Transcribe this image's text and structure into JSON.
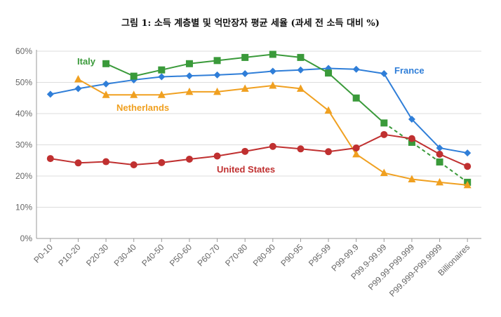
{
  "title": "그림 1: 소득 계층별 및 억만장자 평균 세율 (과세 전 소득 대비 %)",
  "chart_data": {
    "type": "line",
    "title": "그림 1: 소득 계층별 및 억만장자 평균 세율 (과세 전 소득 대비 %)",
    "xlabel": "",
    "ylabel": "",
    "categories": [
      "P0-10",
      "P10-20",
      "P20-30",
      "P30-40",
      "P40-50",
      "P50-60",
      "P60-70",
      "P70-80",
      "P80-90",
      "P90-95",
      "P95-99",
      "P99-99.9",
      "P99.9-99.99",
      "P99.99-P99.999",
      "P99.999-P99.9999",
      "Billionaires"
    ],
    "y_ticks": [
      "0%",
      "10%",
      "20%",
      "30%",
      "40%",
      "50%",
      "60%"
    ],
    "ylim": [
      0,
      60
    ],
    "grid": true,
    "legend": "inline labels",
    "series": [
      {
        "name": "France",
        "color": "#2f7ed8",
        "marker": "diamond",
        "values": [
          46.2,
          48,
          49.5,
          50.8,
          51.8,
          52.1,
          52.4,
          52.8,
          53.6,
          54,
          54.5,
          54.2,
          52.8,
          38.2,
          29,
          27.4
        ]
      },
      {
        "name": "Italy",
        "color": "#3a9a3a",
        "marker": "square",
        "values": [
          null,
          null,
          56,
          52,
          54,
          56,
          57,
          58,
          59,
          58,
          53,
          45,
          37,
          30.8,
          24.5,
          18
        ],
        "dashed_from_index": 12
      },
      {
        "name": "Netherlands",
        "color": "#f0a020",
        "marker": "triangle",
        "values": [
          null,
          51,
          46,
          46,
          46,
          47,
          47,
          48,
          49,
          48,
          41,
          27,
          21,
          19,
          18,
          17.1
        ]
      },
      {
        "name": "United States",
        "color": "#c03030",
        "marker": "circle",
        "values": [
          25.6,
          24.2,
          24.6,
          23.6,
          24.3,
          25.4,
          26.4,
          27.9,
          29.5,
          28.7,
          27.8,
          29,
          33.3,
          32,
          27,
          23.1
        ]
      }
    ]
  }
}
